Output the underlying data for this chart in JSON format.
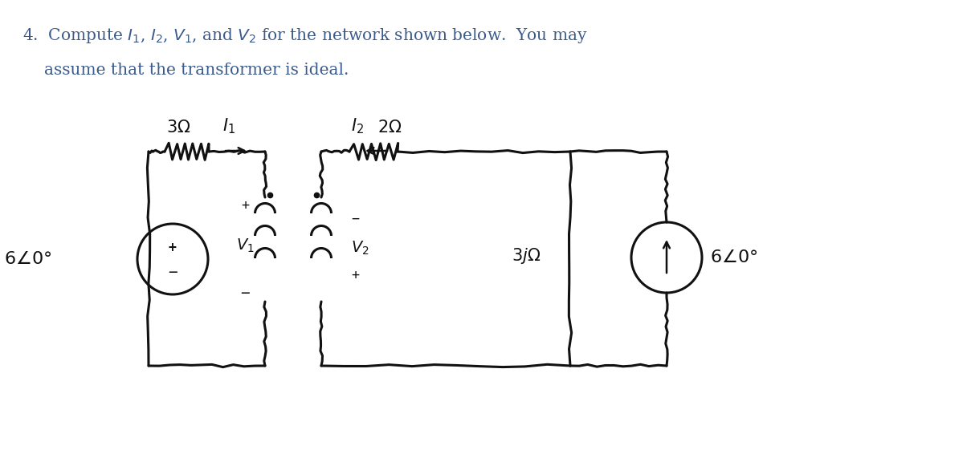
{
  "background_color": "#ffffff",
  "text_color_blue": "#3a5a8c",
  "text_color_black": "#1a1a1a",
  "fig_width": 12.09,
  "fig_height": 5.61,
  "dpi": 100,
  "title_line1": "4.  Compute $I_1$, $I_2$, $V_1$, and $V_2$ for the network shown below.  You may",
  "title_line2": "assume that the transformer is ideal.",
  "title_fontsize": 14.5,
  "circuit_lw": 2.2,
  "circuit_color": "#111111"
}
